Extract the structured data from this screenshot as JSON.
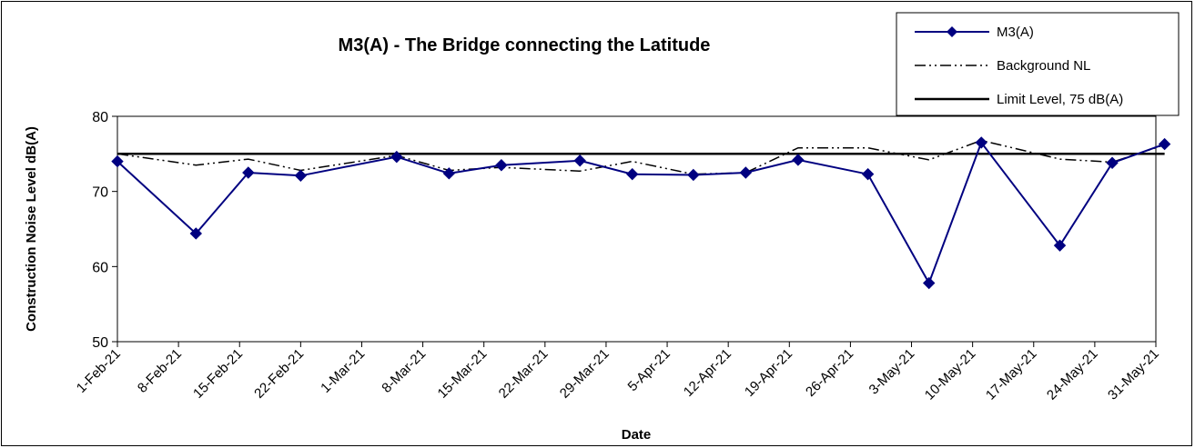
{
  "chart_data": {
    "type": "line",
    "title": "M3(A) - The Bridge connecting the Latitude",
    "xlabel": "Date",
    "ylabel": "Construction Noise Level  dB(A)",
    "ylim": [
      50,
      80
    ],
    "yticks": [
      "50",
      "60",
      "70",
      "80"
    ],
    "xlim": [
      "2021-02-01",
      "2021-05-31"
    ],
    "xticks": [
      {
        "date": "2021-02-01",
        "label": "1-Feb-21"
      },
      {
        "date": "2021-02-08",
        "label": "8-Feb-21"
      },
      {
        "date": "2021-02-15",
        "label": "15-Feb-21"
      },
      {
        "date": "2021-02-22",
        "label": "22-Feb-21"
      },
      {
        "date": "2021-03-01",
        "label": "1-Mar-21"
      },
      {
        "date": "2021-03-08",
        "label": "8-Mar-21"
      },
      {
        "date": "2021-03-15",
        "label": "15-Mar-21"
      },
      {
        "date": "2021-03-22",
        "label": "22-Mar-21"
      },
      {
        "date": "2021-03-29",
        "label": "29-Mar-21"
      },
      {
        "date": "2021-04-05",
        "label": "5-Apr-21"
      },
      {
        "date": "2021-04-12",
        "label": "12-Apr-21"
      },
      {
        "date": "2021-04-19",
        "label": "19-Apr-21"
      },
      {
        "date": "2021-04-26",
        "label": "26-Apr-21"
      },
      {
        "date": "2021-05-03",
        "label": "3-May-21"
      },
      {
        "date": "2021-05-10",
        "label": "10-May-21"
      },
      {
        "date": "2021-05-17",
        "label": "17-May-21"
      },
      {
        "date": "2021-05-24",
        "label": "24-May-21"
      },
      {
        "date": "2021-05-31",
        "label": "31-May-21"
      }
    ],
    "grid": false,
    "legend_position": "top-right",
    "series": [
      {
        "name": "M3(A)",
        "style": "solid line with diamond markers",
        "color": "#000080",
        "points": [
          {
            "x": "2021-02-01",
            "y": 74.0
          },
          {
            "x": "2021-02-10",
            "y": 64.4
          },
          {
            "x": "2021-02-16",
            "y": 72.5
          },
          {
            "x": "2021-02-22",
            "y": 72.1
          },
          {
            "x": "2021-03-05",
            "y": 74.6
          },
          {
            "x": "2021-03-11",
            "y": 72.4
          },
          {
            "x": "2021-03-17",
            "y": 73.5
          },
          {
            "x": "2021-03-26",
            "y": 74.1
          },
          {
            "x": "2021-04-01",
            "y": 72.3
          },
          {
            "x": "2021-04-08",
            "y": 72.2
          },
          {
            "x": "2021-04-14",
            "y": 72.5
          },
          {
            "x": "2021-04-20",
            "y": 74.2
          },
          {
            "x": "2021-04-28",
            "y": 72.3
          },
          {
            "x": "2021-05-05",
            "y": 57.8
          },
          {
            "x": "2021-05-11",
            "y": 76.5
          },
          {
            "x": "2021-05-20",
            "y": 62.8
          },
          {
            "x": "2021-05-26",
            "y": 73.8
          },
          {
            "x": "2021-06-01",
            "y": 76.3
          }
        ]
      },
      {
        "name": "Background NL",
        "style": "dash-dot-dot line",
        "color": "#000000",
        "points": [
          {
            "x": "2021-02-01",
            "y": 75.0
          },
          {
            "x": "2021-02-10",
            "y": 73.5
          },
          {
            "x": "2021-02-16",
            "y": 74.3
          },
          {
            "x": "2021-02-22",
            "y": 72.8
          },
          {
            "x": "2021-03-05",
            "y": 74.8
          },
          {
            "x": "2021-03-11",
            "y": 72.8
          },
          {
            "x": "2021-03-17",
            "y": 73.2
          },
          {
            "x": "2021-03-26",
            "y": 72.7
          },
          {
            "x": "2021-04-01",
            "y": 74.0
          },
          {
            "x": "2021-04-08",
            "y": 72.3
          },
          {
            "x": "2021-04-14",
            "y": 72.5
          },
          {
            "x": "2021-04-20",
            "y": 75.8
          },
          {
            "x": "2021-04-28",
            "y": 75.8
          },
          {
            "x": "2021-05-05",
            "y": 74.2
          },
          {
            "x": "2021-05-11",
            "y": 76.8
          },
          {
            "x": "2021-05-20",
            "y": 74.3
          },
          {
            "x": "2021-05-26",
            "y": 73.9
          },
          {
            "x": "2021-06-01",
            "y": 76.2
          }
        ]
      },
      {
        "name": "Limit Level, 75 dB(A)",
        "style": "solid line",
        "color": "#000000",
        "points": [
          {
            "x": "2021-02-01",
            "y": 75
          },
          {
            "x": "2021-06-01",
            "y": 75
          }
        ]
      }
    ]
  }
}
